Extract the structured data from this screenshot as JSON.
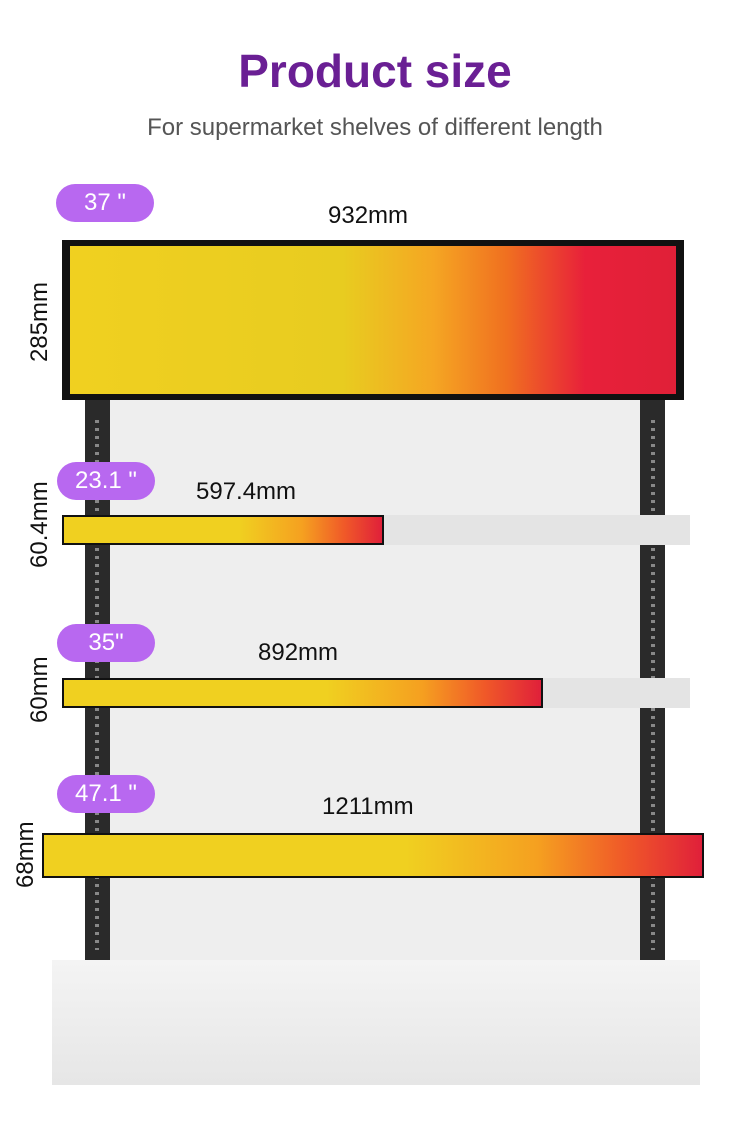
{
  "header": {
    "title": "Product size",
    "subtitle": "For supermarket shelves of different length"
  },
  "displays": [
    {
      "size": "37 \"",
      "width": "932mm",
      "height": "285mm"
    },
    {
      "size": "23.1 \"",
      "width": "597.4mm",
      "height": "60.4mm"
    },
    {
      "size": "35\"",
      "width": "892mm",
      "height": "60mm"
    },
    {
      "size": "47.1 \"",
      "width": "1211mm",
      "height": "68mm"
    }
  ]
}
